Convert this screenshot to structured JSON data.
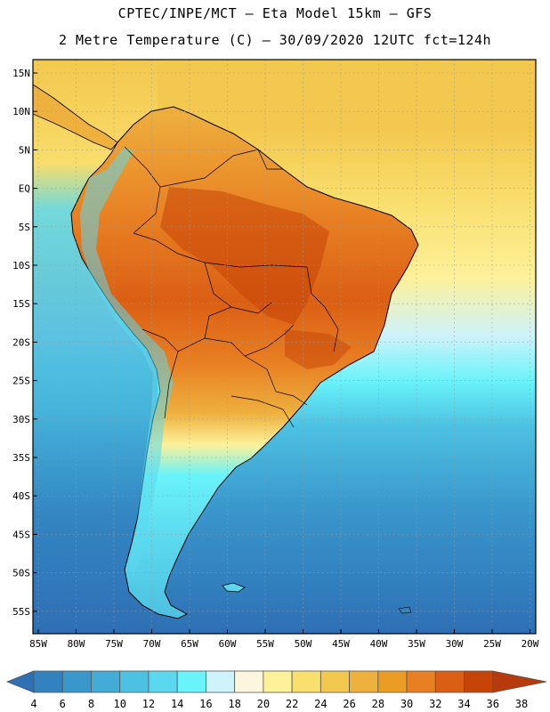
{
  "header": {
    "title_line1": "CPTEC/INPE/MCT –  Eta Model 15km – GFS",
    "title_line2": "2 Metre Temperature (C) – 30/09/2020 12UTC fct=124h"
  },
  "map": {
    "lat_labels": [
      "15N",
      "10N",
      "5N",
      "EQ",
      "5S",
      "10S",
      "15S",
      "20S",
      "25S",
      "30S",
      "35S",
      "40S",
      "45S",
      "50S",
      "55S"
    ],
    "lon_labels": [
      "85W",
      "80W",
      "75W",
      "70W",
      "65W",
      "60W",
      "55W",
      "50W",
      "45W",
      "40W",
      "35W",
      "30W",
      "25W",
      "20W"
    ]
  },
  "colorbar": {
    "levels": [
      "4",
      "6",
      "8",
      "10",
      "12",
      "14",
      "16",
      "18",
      "20",
      "22",
      "24",
      "26",
      "28",
      "30",
      "32",
      "34",
      "36",
      "38"
    ],
    "colors": [
      "#2f6fb4",
      "#3282c0",
      "#3a97cc",
      "#42acd7",
      "#4cc1e2",
      "#5bd8ee",
      "#69f3fa",
      "#cef3fb",
      "#fdf6df",
      "#fdf19a",
      "#f9df6e",
      "#f3c84e",
      "#eeb13e",
      "#eb9c24",
      "#e87f22",
      "#da5f14",
      "#c64408",
      "#b73a0c"
    ]
  }
}
